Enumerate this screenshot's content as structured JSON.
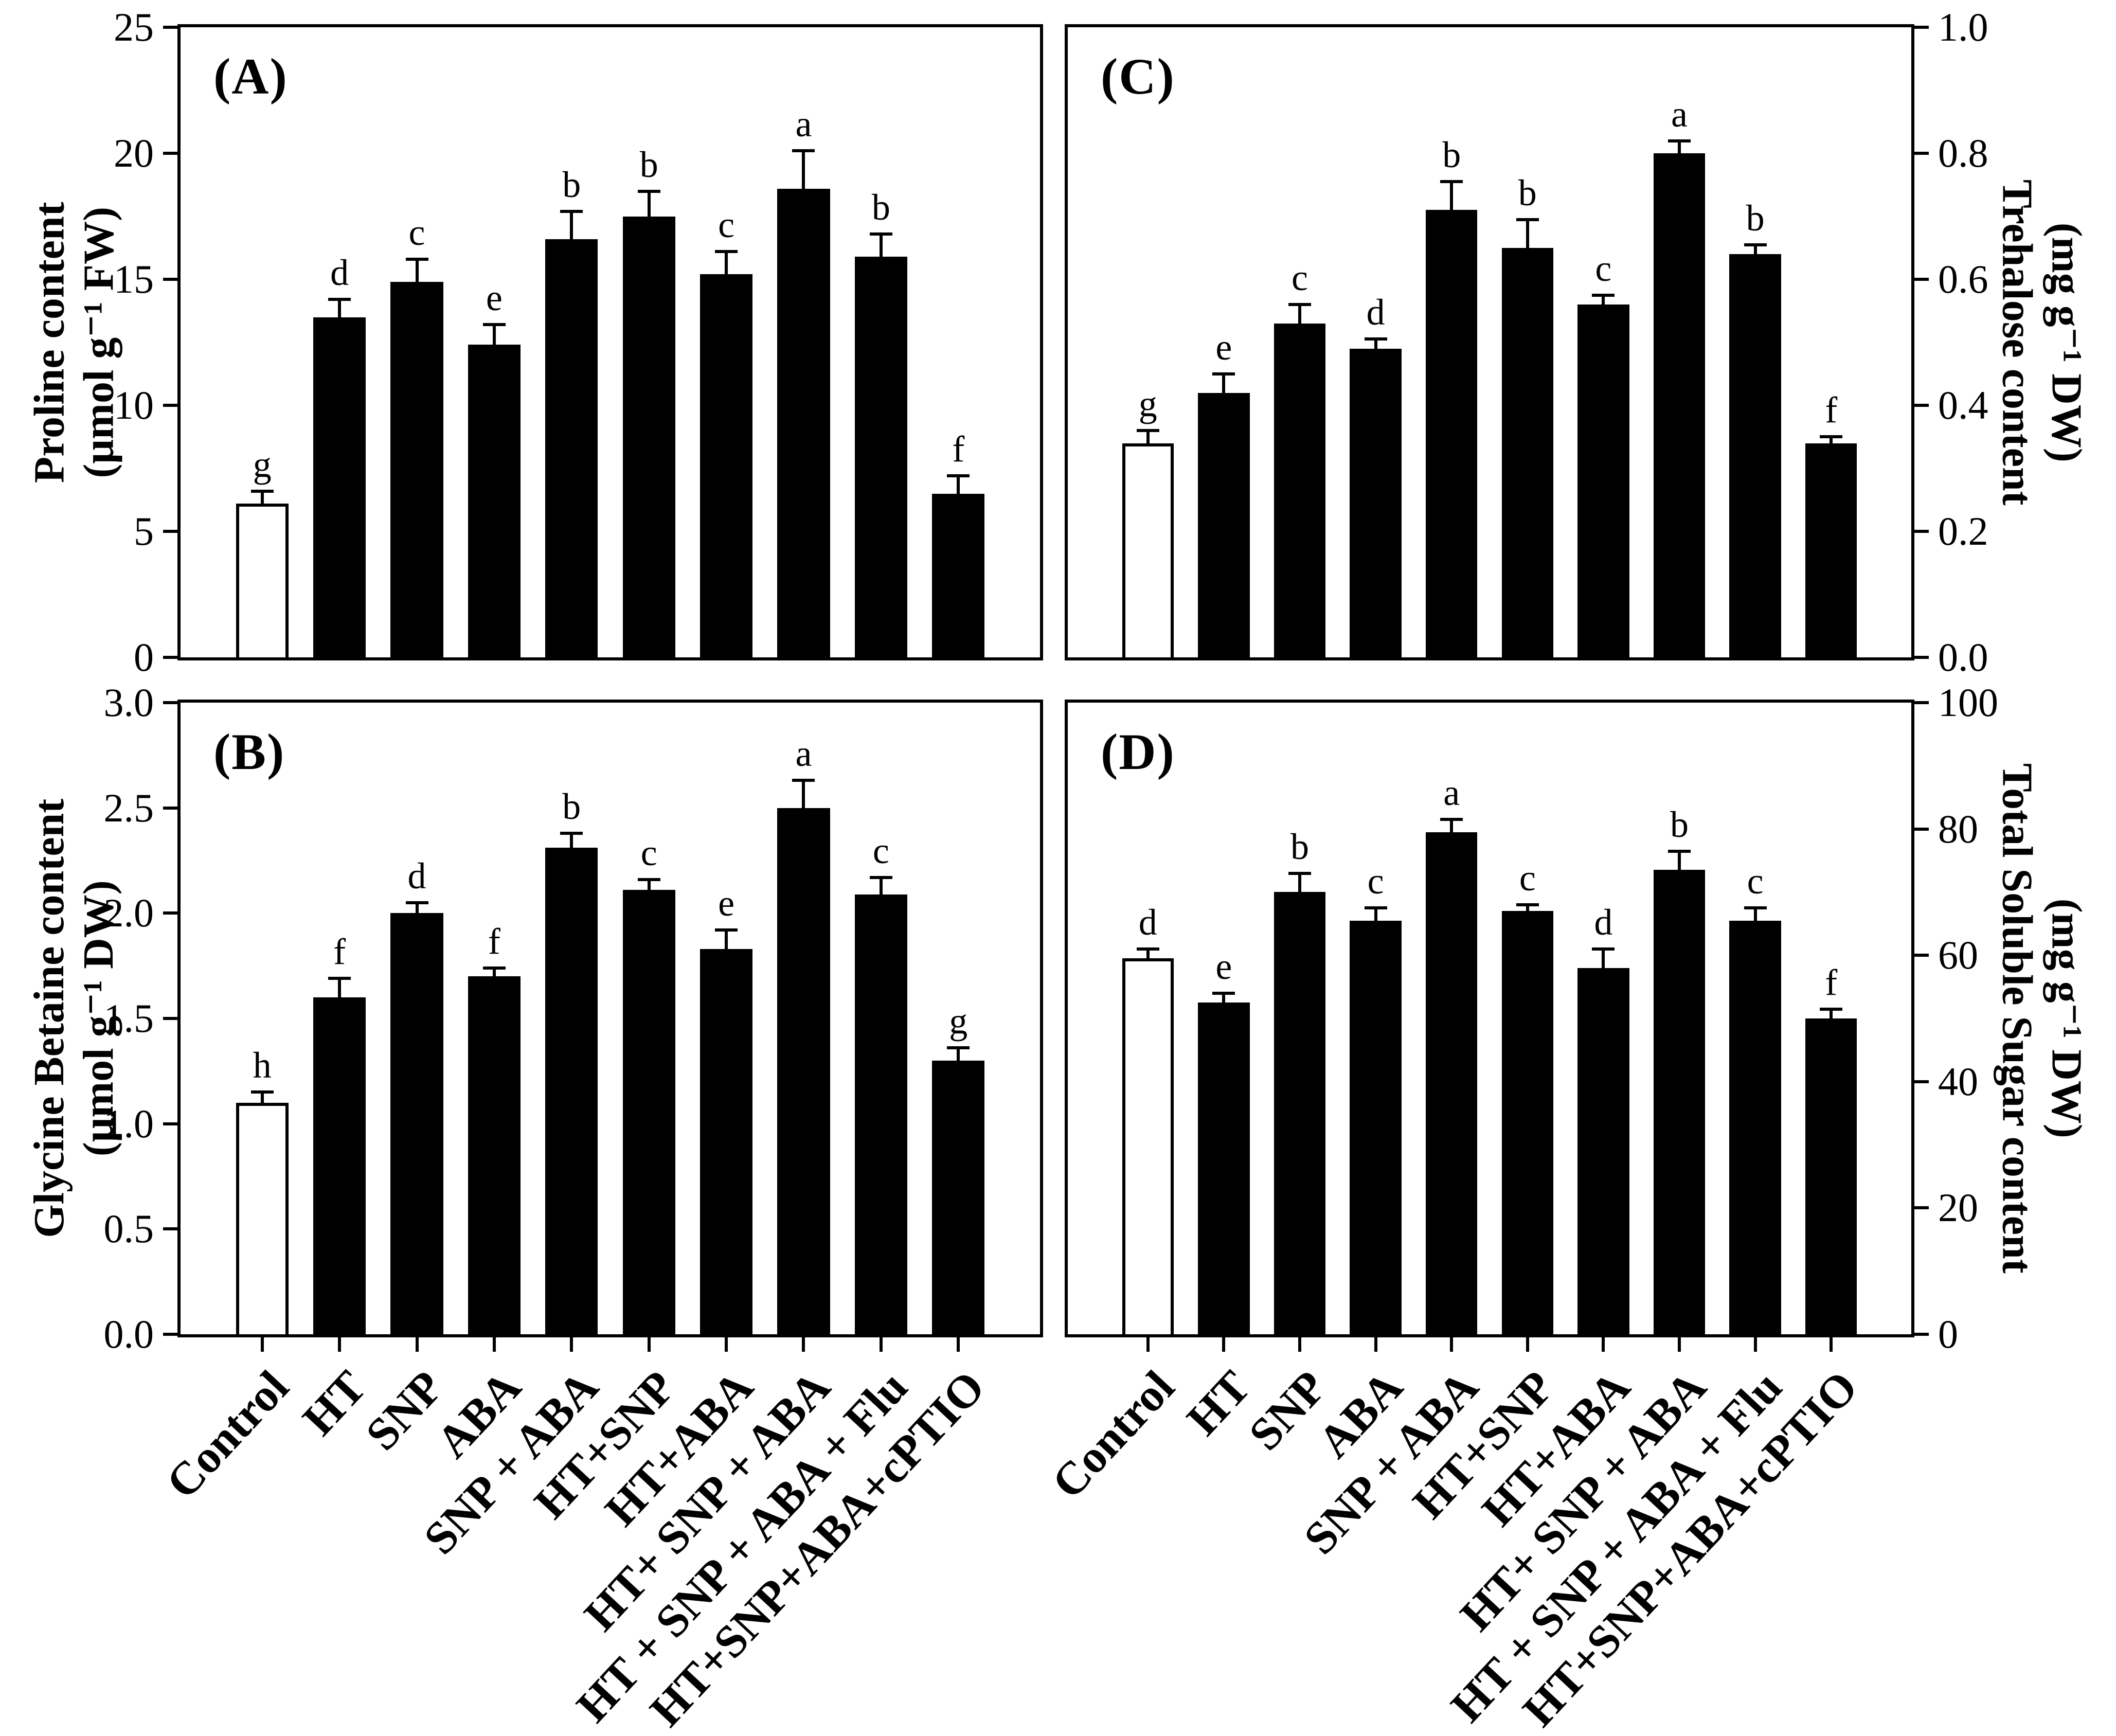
{
  "colors": {
    "background": "#ffffff",
    "axis": "#000000",
    "bar_fill": "#000000",
    "control_bar_fill": "#ffffff",
    "text": "#000000"
  },
  "x_categories": [
    "Control",
    "HT",
    "SNP",
    "ABA",
    "SNP + ABA",
    "HT+SNP",
    "HT+ABA",
    "HT+ SNP + ABA",
    "HT + SNP + ABA + Flu",
    "HT+SNP+ABA+cPTIO"
  ],
  "chart_data": [
    {
      "id": "A",
      "panel_label": "(A)",
      "type": "bar",
      "grid": false,
      "legend": "none",
      "axis_side": "left",
      "ylabel_line1": "Proline content",
      "ylabel_line2": "(μmol g⁻¹ FW)",
      "ylim": [
        0,
        25
      ],
      "ytick_labels": [
        "0",
        "5",
        "10",
        "15",
        "20",
        "25"
      ],
      "categories": [
        "Control",
        "HT",
        "SNP",
        "ABA",
        "SNP + ABA",
        "HT+SNP",
        "HT+ABA",
        "HT+ SNP + ABA",
        "HT + SNP + ABA + Flu",
        "HT+SNP+ABA+cPTIO"
      ],
      "values": [
        6.1,
        13.5,
        14.9,
        12.4,
        16.6,
        17.5,
        15.2,
        18.6,
        15.9,
        6.5
      ],
      "errors": [
        0.5,
        0.7,
        0.9,
        0.8,
        1.1,
        1.0,
        0.9,
        1.5,
        0.9,
        0.7
      ],
      "sig_letters": [
        "g",
        "d",
        "c",
        "e",
        "b",
        "b",
        "c",
        "a",
        "b",
        "f"
      ]
    },
    {
      "id": "B",
      "panel_label": "(B)",
      "type": "bar",
      "grid": false,
      "legend": "none",
      "axis_side": "left",
      "ylabel_line1": "Glycine Betaine content",
      "ylabel_line2": "(μmol g⁻¹ DW)",
      "ylim": [
        0,
        3
      ],
      "ytick_labels": [
        "0.0",
        "0.5",
        "1.0",
        "1.5",
        "2.0",
        "2.5",
        "3.0"
      ],
      "categories": [
        "Control",
        "HT",
        "SNP",
        "ABA",
        "SNP + ABA",
        "HT+SNP",
        "HT+ABA",
        "HT+ SNP + ABA",
        "HT + SNP + ABA + Flu",
        "HT+SNP+ABA+cPTIO"
      ],
      "values": [
        1.1,
        1.6,
        2.0,
        1.7,
        2.31,
        2.11,
        1.83,
        2.5,
        2.09,
        1.3
      ],
      "errors": [
        0.05,
        0.09,
        0.05,
        0.04,
        0.07,
        0.05,
        0.09,
        0.13,
        0.08,
        0.06
      ],
      "sig_letters": [
        "h",
        "f",
        "d",
        "f",
        "b",
        "c",
        "e",
        "a",
        "c",
        "g"
      ]
    },
    {
      "id": "C",
      "panel_label": "(C)",
      "type": "bar",
      "grid": false,
      "legend": "none",
      "axis_side": "right",
      "ylabel_line1": "Trehalose content",
      "ylabel_line2": "(mg g⁻¹ DW)",
      "ylim": [
        0,
        1
      ],
      "ytick_labels": [
        "0.0",
        "0.2",
        "0.4",
        "0.6",
        "0.8",
        "1.0"
      ],
      "categories": [
        "Control",
        "HT",
        "SNP",
        "ABA",
        "SNP + ABA",
        "HT+SNP",
        "HT+ABA",
        "HT+ SNP + ABA",
        "HT + SNP + ABA + Flu",
        "HT+SNP+ABA+cPTIO"
      ],
      "values": [
        0.34,
        0.42,
        0.53,
        0.49,
        0.71,
        0.65,
        0.56,
        0.8,
        0.64,
        0.34
      ],
      "errors": [
        0.02,
        0.03,
        0.03,
        0.015,
        0.045,
        0.045,
        0.015,
        0.02,
        0.015,
        0.01
      ],
      "sig_letters": [
        "g",
        "e",
        "c",
        "d",
        "b",
        "b",
        "c",
        "a",
        "b",
        "f"
      ]
    },
    {
      "id": "D",
      "panel_label": "(D)",
      "type": "bar",
      "grid": false,
      "legend": "none",
      "axis_side": "right",
      "ylabel_line1": "Total Soluble Sugar content",
      "ylabel_line2": "(mg g⁻¹ DW)",
      "ylim": [
        0,
        100
      ],
      "ytick_labels": [
        "0",
        "20",
        "40",
        "60",
        "80",
        "100"
      ],
      "categories": [
        "Control",
        "HT",
        "SNP",
        "ABA",
        "SNP + ABA",
        "HT+SNP",
        "HT+ABA",
        "HT+ SNP + ABA",
        "HT + SNP + ABA + Flu",
        "HT+SNP+ABA+cPTIO"
      ],
      "values": [
        59.5,
        52.5,
        70,
        65.5,
        79.5,
        67,
        58,
        73.5,
        65.5,
        50
      ],
      "errors": [
        1.5,
        1.5,
        3,
        2,
        2,
        1,
        3,
        3,
        2,
        1.5
      ],
      "sig_letters": [
        "d",
        "e",
        "b",
        "c",
        "a",
        "c",
        "d",
        "b",
        "c",
        "f"
      ]
    }
  ]
}
